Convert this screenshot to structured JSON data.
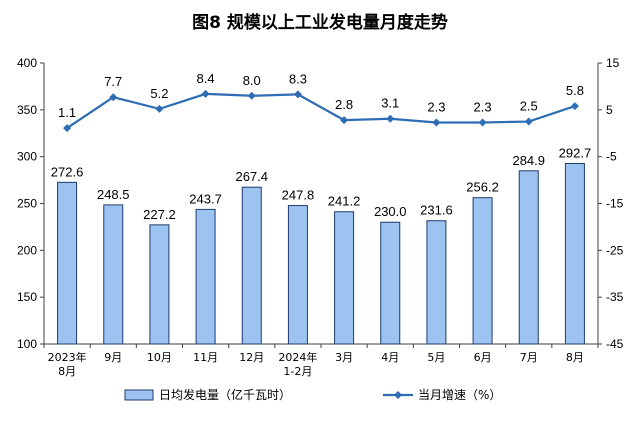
{
  "chart_data": {
    "type": "bar",
    "title": "图8  规模以上工业发电量月度走势",
    "categories": [
      [
        "2023年",
        "8月"
      ],
      [
        "9月"
      ],
      [
        "10月"
      ],
      [
        "11月"
      ],
      [
        "12月"
      ],
      [
        "2024年",
        "1-2月"
      ],
      [
        "3月"
      ],
      [
        "4月"
      ],
      [
        "5月"
      ],
      [
        "6月"
      ],
      [
        "7月"
      ],
      [
        "8月"
      ]
    ],
    "series": [
      {
        "name": "日均发电量（亿千瓦时）",
        "type": "bar",
        "axis": "left",
        "values": [
          272.6,
          248.5,
          227.2,
          243.7,
          267.4,
          247.8,
          241.2,
          230.0,
          231.6,
          256.2,
          284.9,
          292.7
        ],
        "labels": [
          "272.6",
          "248.5",
          "227.2",
          "243.7",
          "267.4",
          "247.8",
          "241.2",
          "230.0",
          "231.6",
          "256.2",
          "284.9",
          "292.7"
        ]
      },
      {
        "name": "当月增速（%）",
        "type": "line",
        "axis": "right",
        "values": [
          1.1,
          7.7,
          5.2,
          8.4,
          8.0,
          8.3,
          2.8,
          3.1,
          2.3,
          2.3,
          2.5,
          5.8
        ],
        "labels": [
          "1.1",
          "7.7",
          "5.2",
          "8.4",
          "8.0",
          "8.3",
          "2.8",
          "3.1",
          "2.3",
          "2.3",
          "2.5",
          "5.8"
        ]
      }
    ],
    "y_left": {
      "min": 100,
      "max": 400,
      "ticks": [
        100,
        150,
        200,
        250,
        300,
        350,
        400
      ]
    },
    "y_right": {
      "min": -45,
      "max": 15,
      "ticks": [
        -45,
        -35,
        -25,
        -15,
        -5,
        5,
        15
      ]
    },
    "legend_position": "bottom",
    "colors": {
      "bar_fill": "#9dc3f0",
      "bar_stroke": "#1f3b6e",
      "line": "#2e6db4",
      "axis": "#404040"
    }
  }
}
